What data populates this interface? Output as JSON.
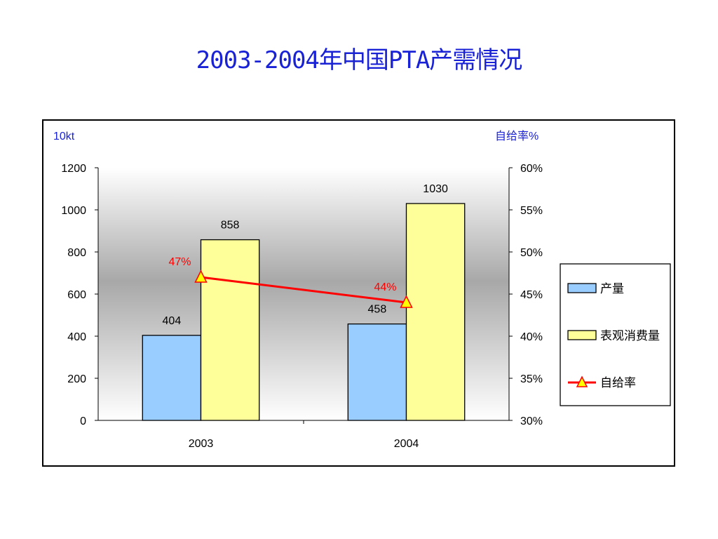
{
  "chart_data": {
    "type": "bar",
    "title": "2003-2004年中国PTA产需情况",
    "categories": [
      "2003",
      "2004"
    ],
    "series": [
      {
        "name": "产量",
        "kind": "bar",
        "axis": "left",
        "values": [
          404,
          458
        ],
        "color": "#99ccff"
      },
      {
        "name": "表观消费量",
        "kind": "bar",
        "axis": "left",
        "values": [
          858,
          1030
        ],
        "color": "#ffff99"
      },
      {
        "name": "自给率",
        "kind": "line",
        "axis": "right",
        "values": [
          47,
          44
        ],
        "labels": [
          "47%",
          "44%"
        ],
        "color": "#ff0000"
      }
    ],
    "ylabel": "10kt",
    "y2label": "自给率%",
    "ylim": [
      0,
      1200
    ],
    "y2lim": [
      30,
      60
    ],
    "yticks": [
      "0",
      "200",
      "400",
      "600",
      "800",
      "1000",
      "1200"
    ],
    "y2ticks": [
      "30%",
      "35%",
      "40%",
      "45%",
      "50%",
      "55%",
      "60%"
    ],
    "legend_position": "right",
    "plot_background": "gray-gradient"
  }
}
